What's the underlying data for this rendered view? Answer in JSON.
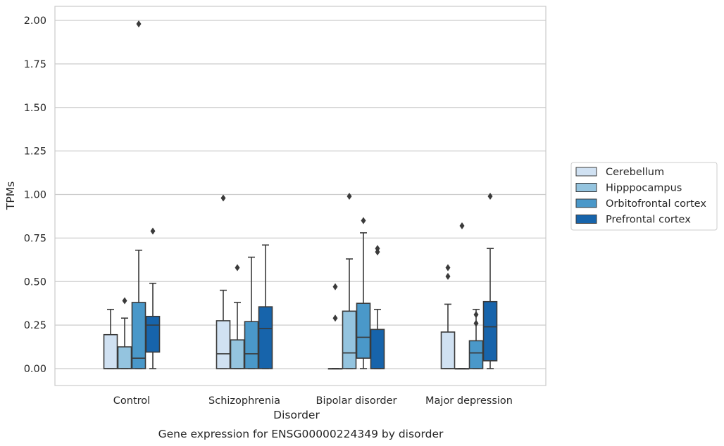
{
  "chart_data": {
    "type": "box",
    "title": "",
    "caption": "Gene expression for ENSG00000224349 by disorder",
    "xlabel": "Disorder",
    "ylabel": "TPMs",
    "ylim": [
      -0.1,
      2.08
    ],
    "yticks": [
      "0.00",
      "0.25",
      "0.50",
      "0.75",
      "1.00",
      "1.25",
      "1.50",
      "1.75",
      "2.00"
    ],
    "grid": "horizontal",
    "legend_position": "right",
    "categories": [
      "Control",
      "Schizophrenia",
      "Bipolar disorder",
      "Major depression"
    ],
    "series": [
      {
        "name": "Cerebellum",
        "color": "#d0e1f2",
        "boxes": [
          {
            "whisker_low": 0.0,
            "q1": 0.0,
            "median": 0.0,
            "q3": 0.195,
            "whisker_high": 0.34,
            "outliers": []
          },
          {
            "whisker_low": 0.0,
            "q1": 0.0,
            "median": 0.085,
            "q3": 0.275,
            "whisker_high": 0.45,
            "outliers": [
              0.98
            ]
          },
          {
            "whisker_low": 0.0,
            "q1": 0.0,
            "median": 0.0,
            "q3": 0.0,
            "whisker_high": 0.0,
            "outliers": [
              0.29,
              0.47
            ]
          },
          {
            "whisker_low": 0.0,
            "q1": 0.0,
            "median": 0.0,
            "q3": 0.21,
            "whisker_high": 0.37,
            "outliers": [
              0.53,
              0.58
            ]
          }
        ]
      },
      {
        "name": "Hipppocampus",
        "color": "#94c4df",
        "boxes": [
          {
            "whisker_low": 0.0,
            "q1": 0.0,
            "median": 0.0,
            "q3": 0.125,
            "whisker_high": 0.29,
            "outliers": [
              0.39
            ]
          },
          {
            "whisker_low": 0.0,
            "q1": 0.0,
            "median": 0.0,
            "q3": 0.165,
            "whisker_high": 0.38,
            "outliers": [
              0.58
            ]
          },
          {
            "whisker_low": 0.0,
            "q1": 0.0,
            "median": 0.09,
            "q3": 0.33,
            "whisker_high": 0.63,
            "outliers": [
              0.99
            ]
          },
          {
            "whisker_low": 0.0,
            "q1": 0.0,
            "median": 0.0,
            "q3": 0.0,
            "whisker_high": 0.0,
            "outliers": [
              0.82
            ]
          }
        ]
      },
      {
        "name": "Orbitofrontal cortex",
        "color": "#4a98c9",
        "boxes": [
          {
            "whisker_low": 0.0,
            "q1": 0.0,
            "median": 0.06,
            "q3": 0.38,
            "whisker_high": 0.68,
            "outliers": [
              1.98
            ]
          },
          {
            "whisker_low": 0.0,
            "q1": 0.0,
            "median": 0.085,
            "q3": 0.27,
            "whisker_high": 0.64,
            "outliers": []
          },
          {
            "whisker_low": 0.0,
            "q1": 0.06,
            "median": 0.18,
            "q3": 0.375,
            "whisker_high": 0.78,
            "outliers": [
              0.85
            ]
          },
          {
            "whisker_low": 0.0,
            "q1": 0.0,
            "median": 0.09,
            "q3": 0.16,
            "whisker_high": 0.34,
            "outliers": [
              0.26,
              0.31
            ]
          }
        ]
      },
      {
        "name": "Prefrontal cortex",
        "color": "#1764ab",
        "boxes": [
          {
            "whisker_low": 0.0,
            "q1": 0.095,
            "median": 0.25,
            "q3": 0.3,
            "whisker_high": 0.49,
            "outliers": [
              0.79
            ]
          },
          {
            "whisker_low": 0.0,
            "q1": 0.0,
            "median": 0.23,
            "q3": 0.355,
            "whisker_high": 0.71,
            "outliers": []
          },
          {
            "whisker_low": 0.0,
            "q1": 0.0,
            "median": 0.0,
            "q3": 0.225,
            "whisker_high": 0.34,
            "outliers": [
              0.67,
              0.69
            ]
          },
          {
            "whisker_low": 0.0,
            "q1": 0.045,
            "median": 0.24,
            "q3": 0.385,
            "whisker_high": 0.69,
            "outliers": [
              0.99
            ]
          }
        ]
      }
    ]
  }
}
